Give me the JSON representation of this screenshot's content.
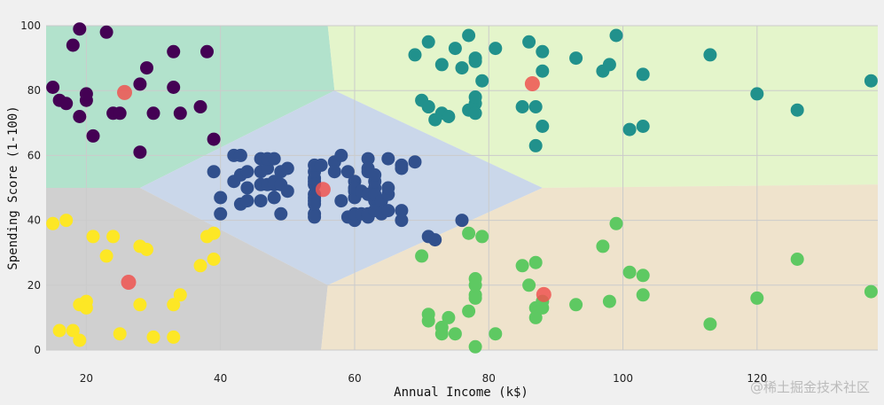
{
  "chart_data": {
    "type": "scatter",
    "title": "",
    "xlabel": "Annual Income (k$)",
    "ylabel": "Spending Score (1-100)",
    "xlim": [
      14,
      138
    ],
    "ylim": [
      0,
      100
    ],
    "xticks": [
      20,
      40,
      60,
      80,
      100,
      120
    ],
    "yticks": [
      0,
      20,
      40,
      60,
      80,
      100
    ],
    "grid": true,
    "colors": {
      "background": "#f0f0f0",
      "grid": "#cbcbcb",
      "centroid": "#ef5350"
    },
    "regions": [
      {
        "color": "#b2e2cc",
        "polygon": [
          [
            14,
            100
          ],
          [
            56,
            100
          ],
          [
            57,
            80
          ],
          [
            28,
            50
          ],
          [
            14,
            50
          ]
        ]
      },
      {
        "color": "#e4f5cb",
        "polygon": [
          [
            56,
            100
          ],
          [
            138,
            100
          ],
          [
            138,
            51
          ],
          [
            88,
            50
          ],
          [
            57,
            80
          ]
        ]
      },
      {
        "color": "#cad7ea",
        "polygon": [
          [
            28,
            50
          ],
          [
            57,
            80
          ],
          [
            88,
            50
          ],
          [
            56,
            20
          ]
        ]
      },
      {
        "color": "#d0d0d0",
        "polygon": [
          [
            14,
            50
          ],
          [
            28,
            50
          ],
          [
            56,
            20
          ],
          [
            55,
            0
          ],
          [
            14,
            0
          ]
        ]
      },
      {
        "color": "#efe3cc",
        "polygon": [
          [
            56,
            20
          ],
          [
            88,
            50
          ],
          [
            138,
            51
          ],
          [
            138,
            0
          ],
          [
            55,
            0
          ]
        ]
      }
    ],
    "series": [
      {
        "color": "#440154",
        "points": [
          [
            15,
            81
          ],
          [
            16,
            77
          ],
          [
            17,
            76
          ],
          [
            18,
            94
          ],
          [
            19,
            72
          ],
          [
            19,
            99
          ],
          [
            20,
            77
          ],
          [
            20,
            79
          ],
          [
            21,
            66
          ],
          [
            23,
            98
          ],
          [
            24,
            73
          ],
          [
            25,
            73
          ],
          [
            28,
            82
          ],
          [
            28,
            61
          ],
          [
            29,
            87
          ],
          [
            30,
            73
          ],
          [
            33,
            92
          ],
          [
            33,
            81
          ],
          [
            34,
            73
          ],
          [
            37,
            75
          ],
          [
            38,
            92
          ],
          [
            39,
            65
          ]
        ]
      },
      {
        "color": "#31508d",
        "points": [
          [
            39,
            55
          ],
          [
            40,
            47
          ],
          [
            40,
            42
          ],
          [
            42,
            52
          ],
          [
            42,
            60
          ],
          [
            43,
            54
          ],
          [
            43,
            60
          ],
          [
            43,
            45
          ],
          [
            44,
            46
          ],
          [
            44,
            50
          ],
          [
            44,
            55
          ],
          [
            46,
            51
          ],
          [
            46,
            59
          ],
          [
            46,
            55
          ],
          [
            46,
            46
          ],
          [
            47,
            51
          ],
          [
            47,
            56
          ],
          [
            47,
            59
          ],
          [
            48,
            47
          ],
          [
            48,
            52
          ],
          [
            48,
            51
          ],
          [
            48,
            59
          ],
          [
            49,
            55
          ],
          [
            49,
            42
          ],
          [
            49,
            51
          ],
          [
            50,
            56
          ],
          [
            50,
            49
          ],
          [
            54,
            47
          ],
          [
            54,
            53
          ],
          [
            54,
            52
          ],
          [
            54,
            55
          ],
          [
            54,
            48
          ],
          [
            54,
            42
          ],
          [
            54,
            57
          ],
          [
            54,
            51
          ],
          [
            54,
            46
          ],
          [
            54,
            45
          ],
          [
            54,
            41
          ],
          [
            55,
            57
          ],
          [
            57,
            58
          ],
          [
            57,
            55
          ],
          [
            58,
            60
          ],
          [
            58,
            46
          ],
          [
            59,
            55
          ],
          [
            59,
            41
          ],
          [
            60,
            49
          ],
          [
            60,
            40
          ],
          [
            60,
            42
          ],
          [
            60,
            52
          ],
          [
            60,
            47
          ],
          [
            60,
            50
          ],
          [
            61,
            42
          ],
          [
            61,
            49
          ],
          [
            62,
            41
          ],
          [
            62,
            48
          ],
          [
            62,
            59
          ],
          [
            62,
            55
          ],
          [
            62,
            56
          ],
          [
            62,
            42
          ],
          [
            63,
            50
          ],
          [
            63,
            46
          ],
          [
            63,
            43
          ],
          [
            63,
            48
          ],
          [
            63,
            52
          ],
          [
            63,
            54
          ],
          [
            64,
            42
          ],
          [
            64,
            46
          ],
          [
            65,
            48
          ],
          [
            65,
            50
          ],
          [
            65,
            43
          ],
          [
            65,
            59
          ],
          [
            67,
            43
          ],
          [
            67,
            57
          ],
          [
            67,
            56
          ],
          [
            67,
            40
          ],
          [
            69,
            58
          ],
          [
            71,
            35
          ],
          [
            72,
            34
          ],
          [
            76,
            40
          ]
        ]
      },
      {
        "color": "#21918c",
        "points": [
          [
            69,
            91
          ],
          [
            70,
            77
          ],
          [
            71,
            95
          ],
          [
            71,
            75
          ],
          [
            71,
            75
          ],
          [
            72,
            71
          ],
          [
            73,
            88
          ],
          [
            73,
            73
          ],
          [
            74,
            72
          ],
          [
            75,
            93
          ],
          [
            76,
            87
          ],
          [
            77,
            97
          ],
          [
            77,
            74
          ],
          [
            78,
            90
          ],
          [
            78,
            76
          ],
          [
            78,
            89
          ],
          [
            78,
            78
          ],
          [
            78,
            73
          ],
          [
            79,
            83
          ],
          [
            81,
            93
          ],
          [
            85,
            75
          ],
          [
            86,
            95
          ],
          [
            87,
            63
          ],
          [
            87,
            75
          ],
          [
            88,
            92
          ],
          [
            88,
            86
          ],
          [
            88,
            69
          ],
          [
            93,
            90
          ],
          [
            97,
            86
          ],
          [
            98,
            88
          ],
          [
            99,
            97
          ],
          [
            101,
            68
          ],
          [
            103,
            85
          ],
          [
            103,
            69
          ],
          [
            113,
            91
          ],
          [
            120,
            79
          ],
          [
            126,
            74
          ],
          [
            137,
            83
          ]
        ]
      },
      {
        "color": "#5ec962",
        "points": [
          [
            70,
            29
          ],
          [
            71,
            11
          ],
          [
            71,
            9
          ],
          [
            73,
            5
          ],
          [
            73,
            7
          ],
          [
            74,
            10
          ],
          [
            75,
            5
          ],
          [
            77,
            12
          ],
          [
            77,
            36
          ],
          [
            78,
            22
          ],
          [
            78,
            17
          ],
          [
            78,
            20
          ],
          [
            78,
            16
          ],
          [
            78,
            1
          ],
          [
            79,
            35
          ],
          [
            81,
            5
          ],
          [
            85,
            26
          ],
          [
            86,
            20
          ],
          [
            87,
            27
          ],
          [
            87,
            13
          ],
          [
            87,
            10
          ],
          [
            88,
            13
          ],
          [
            88,
            15
          ],
          [
            93,
            14
          ],
          [
            97,
            32
          ],
          [
            98,
            15
          ],
          [
            99,
            39
          ],
          [
            101,
            24
          ],
          [
            103,
            17
          ],
          [
            103,
            23
          ],
          [
            113,
            8
          ],
          [
            120,
            16
          ],
          [
            126,
            28
          ],
          [
            137,
            18
          ]
        ]
      },
      {
        "color": "#fde725",
        "points": [
          [
            15,
            39
          ],
          [
            16,
            6
          ],
          [
            17,
            40
          ],
          [
            18,
            6
          ],
          [
            19,
            3
          ],
          [
            19,
            14
          ],
          [
            20,
            15
          ],
          [
            20,
            13
          ],
          [
            21,
            35
          ],
          [
            23,
            29
          ],
          [
            24,
            35
          ],
          [
            25,
            5
          ],
          [
            28,
            14
          ],
          [
            28,
            32
          ],
          [
            29,
            31
          ],
          [
            30,
            4
          ],
          [
            33,
            4
          ],
          [
            33,
            14
          ],
          [
            34,
            17
          ],
          [
            37,
            26
          ],
          [
            38,
            35
          ],
          [
            39,
            36
          ],
          [
            39,
            28
          ]
        ]
      }
    ],
    "centroids": [
      [
        25.7,
        79.4
      ],
      [
        55.3,
        49.5
      ],
      [
        86.5,
        82.1
      ],
      [
        88.2,
        17.1
      ],
      [
        26.3,
        20.9
      ]
    ]
  },
  "watermark": "@稀土掘金技术社区"
}
